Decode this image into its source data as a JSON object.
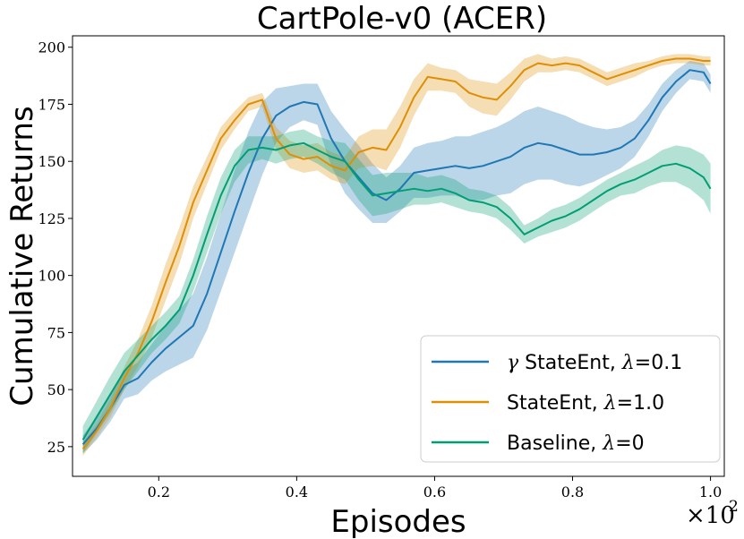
{
  "chart_data": {
    "type": "line",
    "title": "CartPole-v0 (ACER)",
    "xlabel": "Episodes",
    "ylabel": "Cumulative Returns",
    "x_multiplier": "×10",
    "x_multiplier_exp": "2",
    "xlim": [
      0.075,
      1.02
    ],
    "ylim": [
      12,
      205
    ],
    "xticks": [
      0.2,
      0.4,
      0.6,
      0.8,
      1.0
    ],
    "xtick_labels": [
      "0.2",
      "0.4",
      "0.6",
      "0.8",
      "1.0"
    ],
    "yticks": [
      25,
      50,
      75,
      100,
      125,
      150,
      175,
      200
    ],
    "ytick_labels": [
      "25",
      "50",
      "75",
      "100",
      "125",
      "150",
      "175",
      "200"
    ],
    "legend_position": "lower-right",
    "x": [
      0.09,
      0.11,
      0.13,
      0.15,
      0.17,
      0.19,
      0.21,
      0.23,
      0.25,
      0.27,
      0.29,
      0.31,
      0.33,
      0.35,
      0.37,
      0.39,
      0.41,
      0.43,
      0.45,
      0.47,
      0.49,
      0.51,
      0.53,
      0.55,
      0.57,
      0.59,
      0.61,
      0.63,
      0.65,
      0.67,
      0.69,
      0.71,
      0.73,
      0.75,
      0.77,
      0.79,
      0.81,
      0.83,
      0.85,
      0.87,
      0.89,
      0.91,
      0.93,
      0.95,
      0.97,
      0.99,
      1.0
    ],
    "series": [
      {
        "name": "γ StateEnt, λ=0.1",
        "label_prefix": "γ",
        "label_main": " StateEnt, ",
        "label_lambda": "λ",
        "label_value": "=0.1",
        "color": "#1f77b4",
        "fill": "#1f77b4",
        "values": [
          26,
          33,
          42,
          52,
          55,
          62,
          68,
          73,
          78,
          92,
          110,
          128,
          145,
          160,
          170,
          174,
          176,
          175,
          160,
          150,
          143,
          136,
          133,
          138,
          145,
          146,
          147,
          148,
          147,
          148,
          150,
          152,
          156,
          158,
          157,
          155,
          153,
          153,
          154,
          156,
          160,
          168,
          178,
          185,
          190,
          189,
          184
        ],
        "band": [
          4,
          5,
          6,
          6,
          7,
          8,
          10,
          12,
          14,
          16,
          17,
          18,
          18,
          16,
          12,
          9,
          8,
          9,
          12,
          14,
          14,
          13,
          10,
          10,
          11,
          12,
          12,
          13,
          14,
          15,
          15,
          16,
          16,
          16,
          15,
          15,
          14,
          12,
          10,
          9,
          8,
          7,
          6,
          5,
          4,
          4,
          4
        ]
      },
      {
        "name": "StateEnt, λ=1.0",
        "label_prefix": "",
        "label_main": "StateEnt, ",
        "label_lambda": "λ",
        "label_value": "=1.0",
        "color": "#de8f05",
        "fill": "#de8f05",
        "values": [
          24,
          32,
          42,
          55,
          66,
          80,
          97,
          113,
          132,
          146,
          160,
          168,
          175,
          177,
          160,
          153,
          151,
          152,
          148,
          146,
          154,
          156,
          155,
          165,
          178,
          187,
          186,
          185,
          180,
          178,
          177,
          183,
          190,
          193,
          192,
          193,
          192,
          189,
          186,
          188,
          190,
          192,
          194,
          195,
          195,
          194,
          194
        ],
        "band": [
          3,
          3,
          4,
          5,
          6,
          7,
          8,
          8,
          7,
          6,
          5,
          4,
          3,
          3,
          5,
          6,
          6,
          6,
          6,
          6,
          7,
          8,
          9,
          9,
          8,
          6,
          5,
          5,
          6,
          7,
          7,
          6,
          5,
          4,
          3,
          3,
          3,
          3,
          3,
          3,
          3,
          2,
          2,
          2,
          2,
          2,
          2
        ]
      },
      {
        "name": "Baseline, λ=0",
        "label_prefix": "",
        "label_main": "Baseline, ",
        "label_lambda": "λ",
        "label_value": "=0",
        "color": "#029e73",
        "fill": "#029e73",
        "values": [
          28,
          38,
          48,
          58,
          65,
          72,
          78,
          85,
          100,
          118,
          135,
          148,
          155,
          156,
          155,
          157,
          158,
          155,
          152,
          150,
          142,
          135,
          136,
          137,
          138,
          137,
          138,
          136,
          133,
          132,
          130,
          125,
          118,
          121,
          124,
          126,
          129,
          133,
          137,
          140,
          142,
          145,
          148,
          149,
          147,
          143,
          138
        ],
        "band": [
          6,
          7,
          8,
          8,
          7,
          6,
          6,
          6,
          7,
          8,
          8,
          7,
          6,
          5,
          6,
          6,
          6,
          6,
          7,
          8,
          9,
          9,
          9,
          8,
          7,
          6,
          6,
          6,
          5,
          5,
          5,
          5,
          4,
          4,
          5,
          5,
          5,
          5,
          5,
          5,
          6,
          6,
          7,
          8,
          9,
          10,
          11
        ]
      }
    ]
  }
}
